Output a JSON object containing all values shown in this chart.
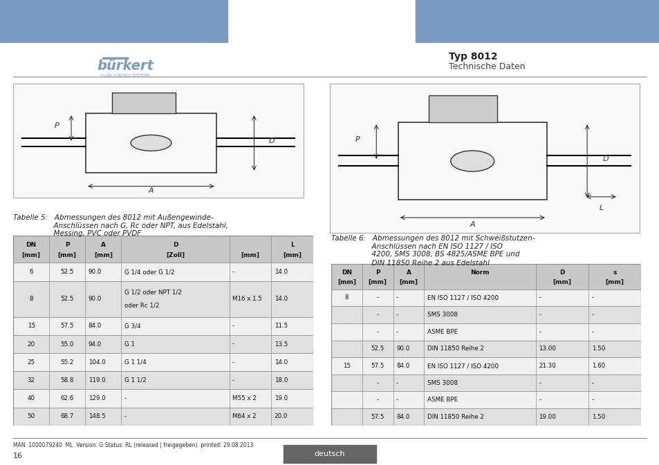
{
  "header_color": "#7a9bbf",
  "title_bold": "Typ 8012",
  "title_sub": "Technische Daten",
  "burkert_color": "#7a9bbf",
  "footer_text": "MAN  1000079240  ML  Version: G Status: RL (released | freigegeben)  printed: 29.08.2013",
  "footer_page": "16",
  "table5_caption_line1": "Tabelle 5:   Abmessungen des 8012 mit Außengewinde-",
  "table5_caption_line2": "                  Anschlüssen nach G, Rc oder NPT, aus Edelstahl,",
  "table5_caption_line3": "                  Messing, PVC oder PVDF",
  "table5_col_labels": [
    "DN",
    "P",
    "A",
    "D",
    "",
    "L"
  ],
  "table5_col_sublabels": [
    "[mm]",
    "[mm]",
    "[mm]",
    "[Zoll]",
    "[mm]",
    "[mm]"
  ],
  "table5_data": [
    [
      "6",
      "52.5",
      "90.0",
      "G 1/4 oder G 1/2",
      "-",
      "14.0"
    ],
    [
      "8",
      "52.5",
      "90.0",
      "G 1/2 oder NPT 1/2\noder Rc 1/2",
      "M16 x 1.5",
      "14.0"
    ],
    [
      "15",
      "57.5",
      "84.0",
      "G 3/4",
      "-",
      "11.5"
    ],
    [
      "20",
      "55.0",
      "94.0",
      "G 1",
      "-",
      "13.5"
    ],
    [
      "25",
      "55.2",
      "104.0",
      "G 1 1/4",
      "-",
      "14.0"
    ],
    [
      "32",
      "58.8",
      "119.0",
      "G 1 1/2",
      "-",
      "18.0"
    ],
    [
      "40",
      "62.6",
      "129.0",
      "-",
      "M55 x 2",
      "19.0"
    ],
    [
      "50",
      "68.7",
      "148.5",
      "-",
      "M64 x 2",
      "20.0"
    ]
  ],
  "table6_caption_line1": "Tabelle 6:   Abmessungen des 8012 mit Schweißstutzen-",
  "table6_caption_line2": "                  Anschlüssen nach EN ISO 1127 / ISO",
  "table6_caption_line3": "                  4200, SMS 3008, BS 4825/ASME BPE und",
  "table6_caption_line4": "                  DIN 11850 Reihe 2 aus Edelstahl",
  "table6_col_labels": [
    "DN",
    "P",
    "A",
    "Norm",
    "D",
    "s"
  ],
  "table6_col_sublabels": [
    "[mm]",
    "[mm]",
    "[mm]",
    "",
    "[mm]",
    "[mm]"
  ],
  "table6_data": [
    [
      "8",
      "-",
      "-",
      "EN ISO 1127 / ISO 4200",
      "-",
      "-"
    ],
    [
      "",
      "-",
      "-",
      "SMS 3008",
      "-",
      "-"
    ],
    [
      "",
      "-",
      "-",
      "ASME BPE",
      "-",
      "-"
    ],
    [
      "",
      "52.5",
      "90.0",
      "DIN 11850 Reihe 2",
      "13.00",
      "1.50"
    ],
    [
      "15",
      "57.5",
      "84.0",
      "EN ISO 1127 / ISO 4200",
      "21.30",
      "1.60"
    ],
    [
      "",
      "-",
      "-",
      "SMS 3008",
      "-",
      "-"
    ],
    [
      "",
      "-",
      "-",
      "ASME BPE",
      "-",
      "-"
    ],
    [
      "",
      "57.5",
      "84.0",
      "DIN 11850 Reihe 2",
      "19.00",
      "1.50"
    ]
  ],
  "bg_color": "#ffffff",
  "hdr_bg": "#c8c8c8",
  "row_bg": [
    "#f0f0f0",
    "#e0e0e0"
  ]
}
